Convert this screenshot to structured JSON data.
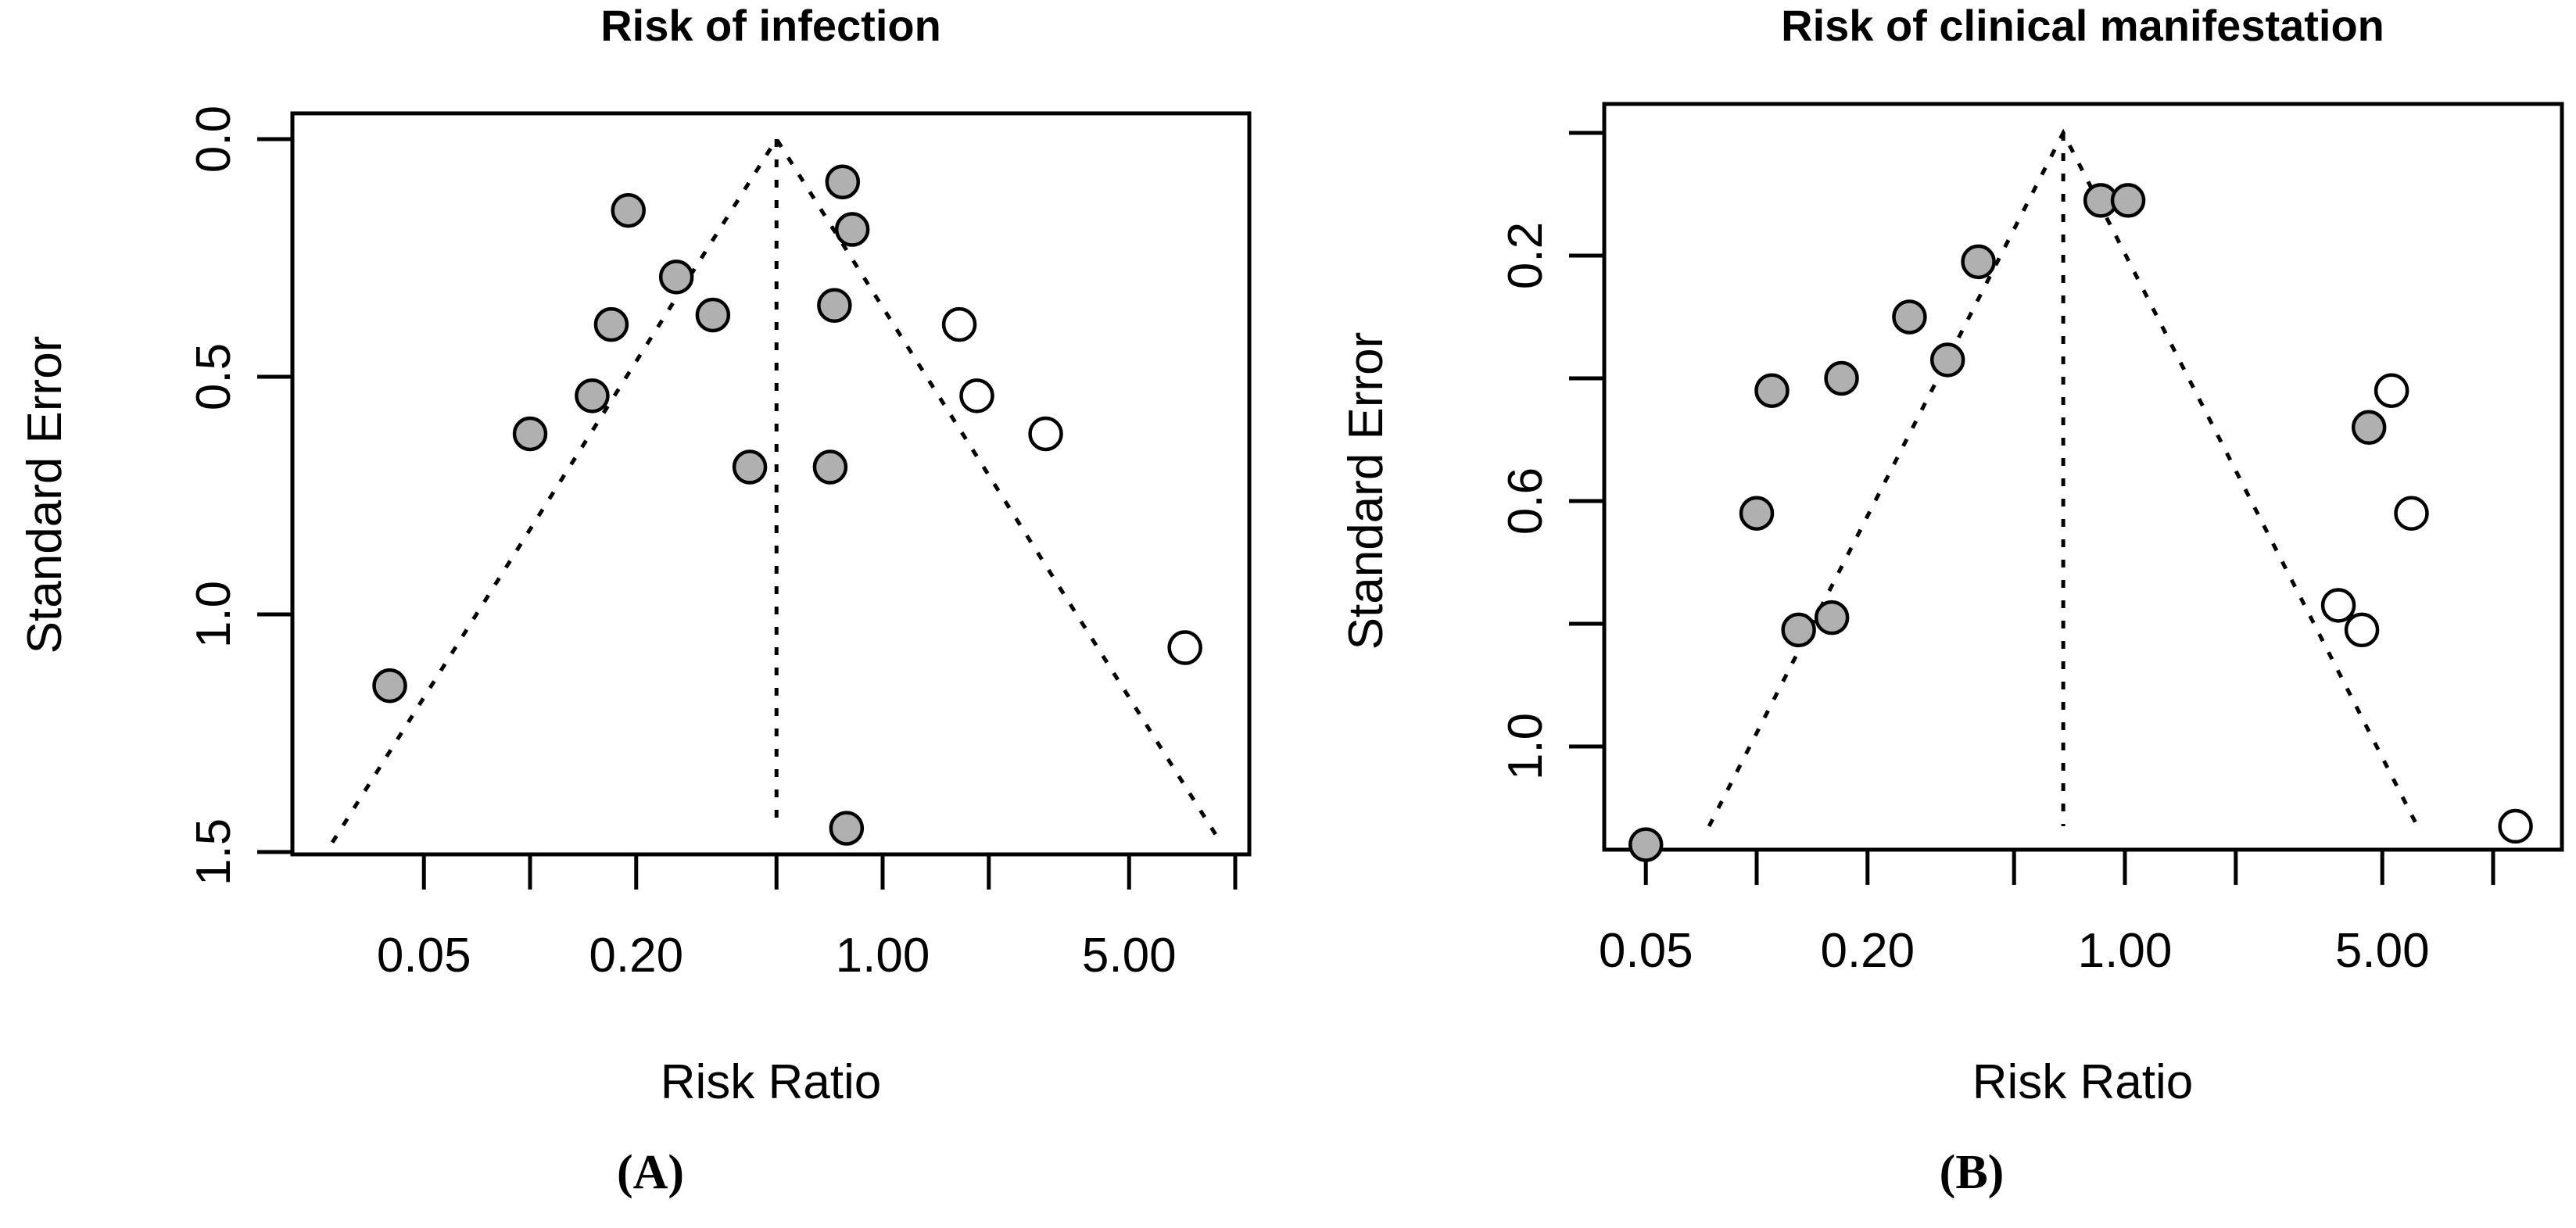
{
  "figure": {
    "background": "#ffffff",
    "line_color": "#000000",
    "point_fill_color": "#b0b0b0",
    "open_point_fill_color": "#ffffff"
  },
  "chart_data": [
    {
      "type": "scatter",
      "subtype": "funnel-plot",
      "panel": "A",
      "title": "Risk of infection",
      "xlabel": "Risk Ratio",
      "ylabel": "Standard Error",
      "caption": "(A)",
      "x_scale": "log",
      "x_ticks": [
        0.05,
        0.1,
        0.2,
        0.5,
        1,
        2,
        5,
        10
      ],
      "x_labeled_ticks": [
        0.05,
        0.2,
        1,
        5
      ],
      "x_tick_labels": [
        "0.05",
        "0.20",
        "1.00",
        "5.00"
      ],
      "y_ticks": [
        0,
        0.5,
        1.0,
        1.5
      ],
      "y_labeled_ticks": [
        0,
        0.5,
        1.0,
        1.5
      ],
      "y_tick_labels": [
        "0.0",
        "0.5",
        "1.0",
        "1.5"
      ],
      "ylim": [
        0,
        1.55
      ],
      "xlim": [
        0.021,
        11.0
      ],
      "summary_rr": 0.5,
      "funnel_ci": 1.96,
      "funnel_se_extent": 1.48,
      "center_se_extent": 1.44,
      "grid": false,
      "legend": false,
      "points": [
        {
          "rr": 0.19,
          "se": 0.15,
          "filled": true
        },
        {
          "rr": 0.77,
          "se": 0.09,
          "filled": true
        },
        {
          "rr": 0.82,
          "se": 0.19,
          "filled": true
        },
        {
          "rr": 0.26,
          "se": 0.29,
          "filled": true
        },
        {
          "rr": 0.33,
          "se": 0.37,
          "filled": true
        },
        {
          "rr": 0.17,
          "se": 0.39,
          "filled": true
        },
        {
          "rr": 0.73,
          "se": 0.35,
          "filled": true
        },
        {
          "rr": 0.15,
          "se": 0.54,
          "filled": true
        },
        {
          "rr": 0.1,
          "se": 0.62,
          "filled": true
        },
        {
          "rr": 0.42,
          "se": 0.69,
          "filled": true
        },
        {
          "rr": 0.71,
          "se": 0.69,
          "filled": true
        },
        {
          "rr": 0.04,
          "se": 1.15,
          "filled": true
        },
        {
          "rr": 0.79,
          "se": 1.45,
          "filled": true
        },
        {
          "rr": 1.65,
          "se": 0.39,
          "filled": false
        },
        {
          "rr": 1.85,
          "se": 0.54,
          "filled": false
        },
        {
          "rr": 2.9,
          "se": 0.62,
          "filled": false
        },
        {
          "rr": 7.2,
          "se": 1.07,
          "filled": false
        }
      ]
    },
    {
      "type": "scatter",
      "subtype": "funnel-plot",
      "panel": "B",
      "title": "Risk of clinical manifestation",
      "xlabel": "Risk Ratio",
      "ylabel": "Standard Error",
      "caption": "(B)",
      "x_scale": "log",
      "x_ticks": [
        0.05,
        0.1,
        0.2,
        0.5,
        1,
        2,
        5,
        10
      ],
      "x_labeled_ticks": [
        0.05,
        0.2,
        1,
        5
      ],
      "x_tick_labels": [
        "0.05",
        "0.20",
        "1.00",
        "5.00"
      ],
      "y_ticks": [
        0,
        0.2,
        0.4,
        0.6,
        0.8,
        1.0
      ],
      "y_labeled_ticks": [
        0.2,
        0.6,
        1.0
      ],
      "y_tick_labels": [
        "0.2",
        "0.6",
        "1.0"
      ],
      "ylim": [
        0,
        1.17
      ],
      "xlim": [
        0.038,
        15.0
      ],
      "summary_rr": 0.68,
      "funnel_ci": 1.96,
      "funnel_se_extent": 1.13,
      "center_se_extent": 1.13,
      "grid": false,
      "legend": false,
      "points": [
        {
          "rr": 0.86,
          "se": 0.11,
          "filled": true
        },
        {
          "rr": 1.02,
          "se": 0.11,
          "filled": true
        },
        {
          "rr": 0.4,
          "se": 0.21,
          "filled": true
        },
        {
          "rr": 0.26,
          "se": 0.3,
          "filled": true
        },
        {
          "rr": 0.33,
          "se": 0.37,
          "filled": true
        },
        {
          "rr": 0.17,
          "se": 0.4,
          "filled": true
        },
        {
          "rr": 0.11,
          "se": 0.42,
          "filled": true
        },
        {
          "rr": 0.1,
          "se": 0.62,
          "filled": true
        },
        {
          "rr": 0.16,
          "se": 0.79,
          "filled": true
        },
        {
          "rr": 0.13,
          "se": 0.81,
          "filled": true
        },
        {
          "rr": 0.05,
          "se": 1.16,
          "filled": true
        },
        {
          "rr": 4.6,
          "se": 0.48,
          "filled": true
        },
        {
          "rr": 5.3,
          "se": 0.42,
          "filled": false
        },
        {
          "rr": 6.0,
          "se": 0.62,
          "filled": false
        },
        {
          "rr": 3.8,
          "se": 0.77,
          "filled": false
        },
        {
          "rr": 4.4,
          "se": 0.81,
          "filled": false
        },
        {
          "rr": 11.5,
          "se": 1.13,
          "filled": false
        }
      ]
    }
  ]
}
